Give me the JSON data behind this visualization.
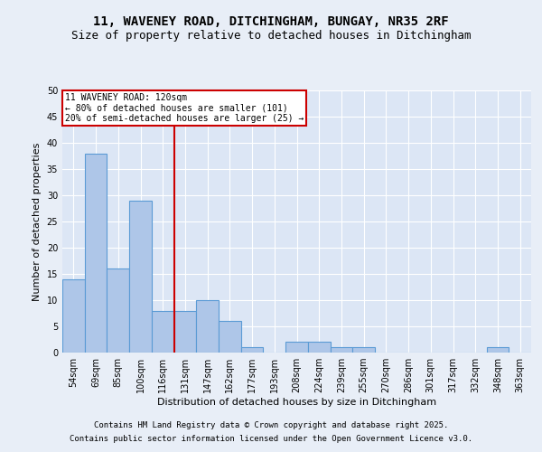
{
  "title_line1": "11, WAVENEY ROAD, DITCHINGHAM, BUNGAY, NR35 2RF",
  "title_line2": "Size of property relative to detached houses in Ditchingham",
  "xlabel": "Distribution of detached houses by size in Ditchingham",
  "ylabel": "Number of detached properties",
  "categories": [
    "54sqm",
    "69sqm",
    "85sqm",
    "100sqm",
    "116sqm",
    "131sqm",
    "147sqm",
    "162sqm",
    "177sqm",
    "193sqm",
    "208sqm",
    "224sqm",
    "239sqm",
    "255sqm",
    "270sqm",
    "286sqm",
    "301sqm",
    "317sqm",
    "332sqm",
    "348sqm",
    "363sqm"
  ],
  "values": [
    14,
    38,
    16,
    29,
    8,
    8,
    10,
    6,
    1,
    0,
    2,
    2,
    1,
    1,
    0,
    0,
    0,
    0,
    0,
    1,
    0
  ],
  "bar_color": "#aec6e8",
  "bar_edge_color": "#5b9bd5",
  "vline_color": "#cc0000",
  "vline_pos": 4.5,
  "annotation_text": "11 WAVENEY ROAD: 120sqm\n← 80% of detached houses are smaller (101)\n20% of semi-detached houses are larger (25) →",
  "annotation_box_color": "#cc0000",
  "ylim": [
    0,
    50
  ],
  "yticks": [
    0,
    5,
    10,
    15,
    20,
    25,
    30,
    35,
    40,
    45,
    50
  ],
  "background_color": "#e8eef7",
  "plot_bg_color": "#dce6f5",
  "grid_color": "#ffffff",
  "footer_line1": "Contains HM Land Registry data © Crown copyright and database right 2025.",
  "footer_line2": "Contains public sector information licensed under the Open Government Licence v3.0.",
  "title_fontsize": 10,
  "subtitle_fontsize": 9,
  "axis_label_fontsize": 8,
  "tick_fontsize": 7,
  "footer_fontsize": 6.5,
  "annotation_fontsize": 7
}
